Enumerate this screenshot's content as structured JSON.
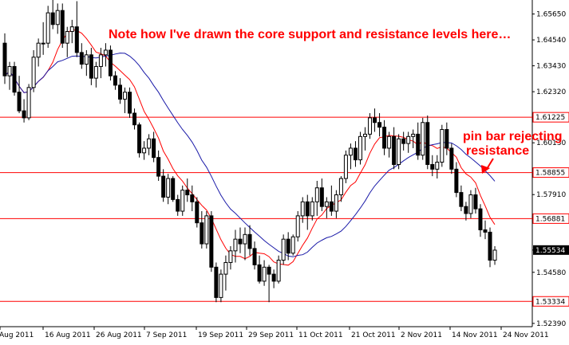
{
  "chart_data": {
    "type": "candlestick",
    "title": "",
    "xlabel": "",
    "ylabel": "",
    "ylim": [
      1.5225,
      1.6625
    ],
    "grid": false,
    "annotations": {
      "note": "Note how I've drawn the core support and resistance levels here…",
      "pin_bar_line1": "pin bar rejecting",
      "pin_bar_line2": "resistance"
    },
    "y_ticks": [
      "1.65650",
      "1.64540",
      "1.63430",
      "1.62320",
      "1.61225",
      "1.60130",
      "1.58855",
      "1.57910",
      "1.56881",
      "1.55534",
      "1.54580",
      "1.53334",
      "1.52390"
    ],
    "x_ticks": [
      "Aug 2011",
      "16 Aug 2011",
      "26 Aug 2011",
      "7 Sep 2011",
      "19 Sep 2011",
      "29 Sep 2011",
      "11 Oct 2011",
      "21 Oct 2011",
      "2 Nov 2011",
      "14 Nov 2011",
      "24 Nov 2011"
    ],
    "levels": [
      {
        "label": "1.61225",
        "value": 1.61225
      },
      {
        "label": "1.58855",
        "value": 1.58855
      },
      {
        "label": "1.56881",
        "value": 1.56881
      },
      {
        "label": "1.53334",
        "value": 1.53334
      }
    ],
    "current_price": "1.55534",
    "colors": {
      "level_line": "#ff0000",
      "fast_ma": "#ff0000",
      "slow_ma": "#1a1aa8",
      "bull_candle": "#ffffff",
      "bear_candle": "#000000",
      "annotation": "#ff0000",
      "current_price_box": "#000000"
    },
    "candles": [
      {
        "o": 1.644,
        "h": 1.6482,
        "l": 1.6265,
        "c": 1.63
      },
      {
        "o": 1.63,
        "h": 1.636,
        "l": 1.624,
        "c": 1.634
      },
      {
        "o": 1.634,
        "h": 1.636,
        "l": 1.6215,
        "c": 1.623
      },
      {
        "o": 1.623,
        "h": 1.63,
        "l": 1.614,
        "c": 1.615
      },
      {
        "o": 1.615,
        "h": 1.62,
        "l": 1.61,
        "c": 1.612
      },
      {
        "o": 1.612,
        "h": 1.6265,
        "l": 1.611,
        "c": 1.625
      },
      {
        "o": 1.625,
        "h": 1.641,
        "l": 1.623,
        "c": 1.638
      },
      {
        "o": 1.638,
        "h": 1.646,
        "l": 1.634,
        "c": 1.644
      },
      {
        "o": 1.644,
        "h": 1.653,
        "l": 1.639,
        "c": 1.644
      },
      {
        "o": 1.644,
        "h": 1.66,
        "l": 1.642,
        "c": 1.657
      },
      {
        "o": 1.657,
        "h": 1.663,
        "l": 1.65,
        "c": 1.652
      },
      {
        "o": 1.652,
        "h": 1.661,
        "l": 1.648,
        "c": 1.658
      },
      {
        "o": 1.658,
        "h": 1.661,
        "l": 1.642,
        "c": 1.644
      },
      {
        "o": 1.644,
        "h": 1.651,
        "l": 1.638,
        "c": 1.649
      },
      {
        "o": 1.649,
        "h": 1.654,
        "l": 1.644,
        "c": 1.651
      },
      {
        "o": 1.651,
        "h": 1.662,
        "l": 1.638,
        "c": 1.64
      },
      {
        "o": 1.64,
        "h": 1.644,
        "l": 1.633,
        "c": 1.635
      },
      {
        "o": 1.635,
        "h": 1.641,
        "l": 1.63,
        "c": 1.639
      },
      {
        "o": 1.639,
        "h": 1.642,
        "l": 1.626,
        "c": 1.629
      },
      {
        "o": 1.629,
        "h": 1.636,
        "l": 1.625,
        "c": 1.634
      },
      {
        "o": 1.634,
        "h": 1.642,
        "l": 1.629,
        "c": 1.639
      },
      {
        "o": 1.639,
        "h": 1.644,
        "l": 1.634,
        "c": 1.641
      },
      {
        "o": 1.641,
        "h": 1.643,
        "l": 1.628,
        "c": 1.63
      },
      {
        "o": 1.63,
        "h": 1.632,
        "l": 1.624,
        "c": 1.626
      },
      {
        "o": 1.626,
        "h": 1.629,
        "l": 1.618,
        "c": 1.62
      },
      {
        "o": 1.62,
        "h": 1.625,
        "l": 1.614,
        "c": 1.623
      },
      {
        "o": 1.623,
        "h": 1.625,
        "l": 1.612,
        "c": 1.614
      },
      {
        "o": 1.614,
        "h": 1.616,
        "l": 1.607,
        "c": 1.609
      },
      {
        "o": 1.609,
        "h": 1.61,
        "l": 1.595,
        "c": 1.597
      },
      {
        "o": 1.597,
        "h": 1.602,
        "l": 1.594,
        "c": 1.599
      },
      {
        "o": 1.599,
        "h": 1.605,
        "l": 1.596,
        "c": 1.603
      },
      {
        "o": 1.603,
        "h": 1.606,
        "l": 1.593,
        "c": 1.595
      },
      {
        "o": 1.595,
        "h": 1.598,
        "l": 1.585,
        "c": 1.587
      },
      {
        "o": 1.587,
        "h": 1.59,
        "l": 1.576,
        "c": 1.578
      },
      {
        "o": 1.578,
        "h": 1.588,
        "l": 1.575,
        "c": 1.586
      },
      {
        "o": 1.586,
        "h": 1.587,
        "l": 1.576,
        "c": 1.577
      },
      {
        "o": 1.577,
        "h": 1.579,
        "l": 1.57,
        "c": 1.572
      },
      {
        "o": 1.572,
        "h": 1.583,
        "l": 1.57,
        "c": 1.581
      },
      {
        "o": 1.581,
        "h": 1.586,
        "l": 1.576,
        "c": 1.579
      },
      {
        "o": 1.579,
        "h": 1.583,
        "l": 1.572,
        "c": 1.576
      },
      {
        "o": 1.576,
        "h": 1.578,
        "l": 1.565,
        "c": 1.567
      },
      {
        "o": 1.567,
        "h": 1.572,
        "l": 1.556,
        "c": 1.558
      },
      {
        "o": 1.558,
        "h": 1.572,
        "l": 1.556,
        "c": 1.57
      },
      {
        "o": 1.57,
        "h": 1.572,
        "l": 1.546,
        "c": 1.548
      },
      {
        "o": 1.548,
        "h": 1.55,
        "l": 1.533,
        "c": 1.535
      },
      {
        "o": 1.535,
        "h": 1.547,
        "l": 1.533,
        "c": 1.545
      },
      {
        "o": 1.545,
        "h": 1.553,
        "l": 1.538,
        "c": 1.55
      },
      {
        "o": 1.55,
        "h": 1.557,
        "l": 1.547,
        "c": 1.555
      },
      {
        "o": 1.555,
        "h": 1.564,
        "l": 1.55,
        "c": 1.56
      },
      {
        "o": 1.56,
        "h": 1.565,
        "l": 1.554,
        "c": 1.558
      },
      {
        "o": 1.558,
        "h": 1.565,
        "l": 1.551,
        "c": 1.562
      },
      {
        "o": 1.562,
        "h": 1.566,
        "l": 1.553,
        "c": 1.556
      },
      {
        "o": 1.556,
        "h": 1.559,
        "l": 1.547,
        "c": 1.549
      },
      {
        "o": 1.549,
        "h": 1.553,
        "l": 1.541,
        "c": 1.542
      },
      {
        "o": 1.542,
        "h": 1.551,
        "l": 1.54,
        "c": 1.548
      },
      {
        "o": 1.548,
        "h": 1.549,
        "l": 1.533,
        "c": 1.545
      },
      {
        "o": 1.545,
        "h": 1.547,
        "l": 1.539,
        "c": 1.542
      },
      {
        "o": 1.542,
        "h": 1.553,
        "l": 1.541,
        "c": 1.551
      },
      {
        "o": 1.551,
        "h": 1.562,
        "l": 1.549,
        "c": 1.56
      },
      {
        "o": 1.56,
        "h": 1.563,
        "l": 1.551,
        "c": 1.554
      },
      {
        "o": 1.554,
        "h": 1.562,
        "l": 1.553,
        "c": 1.561
      },
      {
        "o": 1.561,
        "h": 1.572,
        "l": 1.559,
        "c": 1.57
      },
      {
        "o": 1.57,
        "h": 1.578,
        "l": 1.567,
        "c": 1.576
      },
      {
        "o": 1.576,
        "h": 1.579,
        "l": 1.564,
        "c": 1.57
      },
      {
        "o": 1.57,
        "h": 1.578,
        "l": 1.568,
        "c": 1.576
      },
      {
        "o": 1.576,
        "h": 1.585,
        "l": 1.57,
        "c": 1.582
      },
      {
        "o": 1.582,
        "h": 1.586,
        "l": 1.572,
        "c": 1.574
      },
      {
        "o": 1.574,
        "h": 1.578,
        "l": 1.569,
        "c": 1.576
      },
      {
        "o": 1.576,
        "h": 1.583,
        "l": 1.57,
        "c": 1.572
      },
      {
        "o": 1.572,
        "h": 1.581,
        "l": 1.569,
        "c": 1.579
      },
      {
        "o": 1.579,
        "h": 1.587,
        "l": 1.576,
        "c": 1.586
      },
      {
        "o": 1.586,
        "h": 1.598,
        "l": 1.584,
        "c": 1.596
      },
      {
        "o": 1.596,
        "h": 1.601,
        "l": 1.59,
        "c": 1.599
      },
      {
        "o": 1.599,
        "h": 1.602,
        "l": 1.591,
        "c": 1.594
      },
      {
        "o": 1.594,
        "h": 1.606,
        "l": 1.592,
        "c": 1.604
      },
      {
        "o": 1.604,
        "h": 1.608,
        "l": 1.598,
        "c": 1.605
      },
      {
        "o": 1.605,
        "h": 1.614,
        "l": 1.603,
        "c": 1.612
      },
      {
        "o": 1.612,
        "h": 1.616,
        "l": 1.606,
        "c": 1.61
      },
      {
        "o": 1.61,
        "h": 1.614,
        "l": 1.604,
        "c": 1.608
      },
      {
        "o": 1.608,
        "h": 1.611,
        "l": 1.596,
        "c": 1.599
      },
      {
        "o": 1.599,
        "h": 1.606,
        "l": 1.595,
        "c": 1.604
      },
      {
        "o": 1.604,
        "h": 1.608,
        "l": 1.59,
        "c": 1.592
      },
      {
        "o": 1.592,
        "h": 1.605,
        "l": 1.59,
        "c": 1.603
      },
      {
        "o": 1.603,
        "h": 1.606,
        "l": 1.598,
        "c": 1.601
      },
      {
        "o": 1.601,
        "h": 1.606,
        "l": 1.597,
        "c": 1.604
      },
      {
        "o": 1.604,
        "h": 1.607,
        "l": 1.599,
        "c": 1.605
      },
      {
        "o": 1.605,
        "h": 1.61,
        "l": 1.594,
        "c": 1.596
      },
      {
        "o": 1.596,
        "h": 1.612,
        "l": 1.594,
        "c": 1.61
      },
      {
        "o": 1.61,
        "h": 1.613,
        "l": 1.59,
        "c": 1.592
      },
      {
        "o": 1.592,
        "h": 1.596,
        "l": 1.587,
        "c": 1.59
      },
      {
        "o": 1.59,
        "h": 1.596,
        "l": 1.586,
        "c": 1.593
      },
      {
        "o": 1.593,
        "h": 1.609,
        "l": 1.591,
        "c": 1.607
      },
      {
        "o": 1.607,
        "h": 1.61,
        "l": 1.596,
        "c": 1.599
      },
      {
        "o": 1.599,
        "h": 1.601,
        "l": 1.588,
        "c": 1.59
      },
      {
        "o": 1.59,
        "h": 1.593,
        "l": 1.578,
        "c": 1.58
      },
      {
        "o": 1.58,
        "h": 1.583,
        "l": 1.572,
        "c": 1.574
      },
      {
        "o": 1.574,
        "h": 1.576,
        "l": 1.568,
        "c": 1.571
      },
      {
        "o": 1.571,
        "h": 1.581,
        "l": 1.569,
        "c": 1.579
      },
      {
        "o": 1.579,
        "h": 1.582,
        "l": 1.571,
        "c": 1.573
      },
      {
        "o": 1.573,
        "h": 1.575,
        "l": 1.561,
        "c": 1.564
      },
      {
        "o": 1.564,
        "h": 1.568,
        "l": 1.56,
        "c": 1.563
      },
      {
        "o": 1.563,
        "h": 1.565,
        "l": 1.548,
        "c": 1.551
      },
      {
        "o": 1.551,
        "h": 1.557,
        "l": 1.549,
        "c": 1.5553
      }
    ]
  }
}
